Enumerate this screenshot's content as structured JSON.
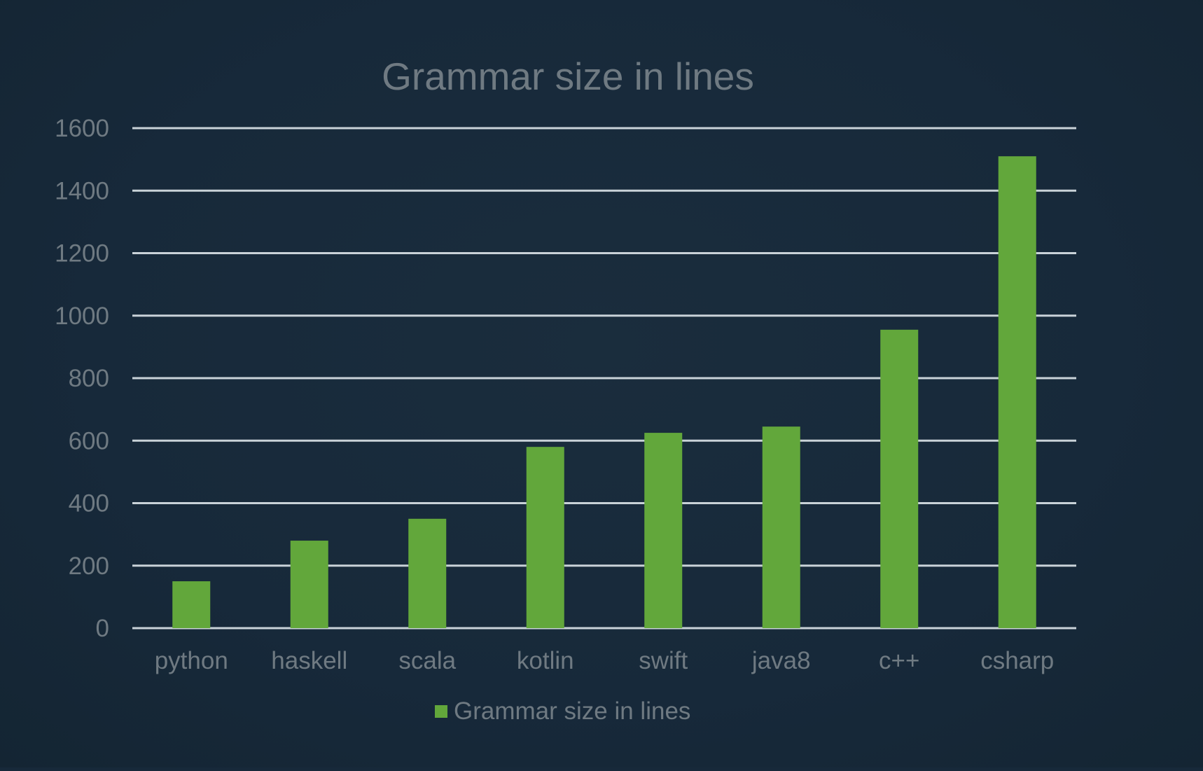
{
  "chart_data": {
    "type": "bar",
    "title": "Grammar size in lines",
    "categories": [
      "python",
      "haskell",
      "scala",
      "kotlin",
      "swift",
      "java8",
      "c++",
      "csharp"
    ],
    "series": [
      {
        "name": "Grammar size in lines",
        "values": [
          150,
          280,
          350,
          580,
          625,
          645,
          955,
          1510
        ]
      }
    ],
    "ylim": [
      0,
      1600
    ],
    "yticks": [
      0,
      200,
      400,
      600,
      800,
      1000,
      1200,
      1400,
      1600
    ],
    "grid": true,
    "legend_position": "bottom",
    "colors": {
      "background": "#17293a",
      "bar": "#62a73b",
      "grid": "#c9d2d8",
      "text": "#6f7a82"
    }
  }
}
